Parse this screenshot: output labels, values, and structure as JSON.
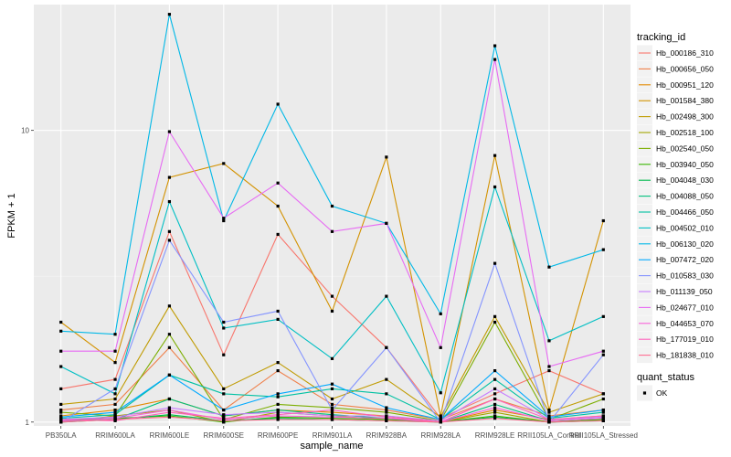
{
  "chart_data": {
    "type": "line",
    "xlabel": "sample_name",
    "ylabel": "FPKM + 1",
    "y_scale": "log10",
    "ylim": [
      0.97,
      27.0
    ],
    "y_ticks": [
      {
        "value": 1,
        "label": "1"
      },
      {
        "value": 10,
        "label": "10"
      }
    ],
    "grid": true,
    "legend_position": "right",
    "categories": [
      "PB350LA",
      "RRIM600LA",
      "RRIM600LE",
      "RRIM600SE",
      "RRIM600PE",
      "RRIM901LA",
      "RRIM928BA",
      "RRIM928LA",
      "RRIM928LE",
      "RRII105LA_Control",
      "RRII105LA_Stressed"
    ],
    "color_legend_title": "tracking_id",
    "shape_legend": {
      "title": "quant_status",
      "entries": [
        "OK"
      ]
    },
    "series": [
      {
        "name": "Hb_000186_310",
        "color": "#F8766D",
        "values": [
          1.3,
          1.4,
          4.5,
          1.7,
          4.4,
          2.7,
          1.8,
          1.03,
          1.25,
          1.5,
          1.25
        ]
      },
      {
        "name": "Hb_000656_050",
        "color": "#EF7F49",
        "values": [
          1.1,
          1.15,
          1.8,
          1.1,
          1.5,
          1.15,
          1.1,
          1.02,
          1.2,
          1.05,
          1.1
        ]
      },
      {
        "name": "Hb_000951_120",
        "color": "#E38900",
        "values": [
          1.05,
          1.1,
          1.2,
          1.05,
          1.1,
          1.08,
          1.05,
          1.0,
          1.1,
          1.02,
          1.05
        ]
      },
      {
        "name": "Hb_001584_380",
        "color": "#D39200",
        "values": [
          2.2,
          1.6,
          6.9,
          7.7,
          5.5,
          2.4,
          8.1,
          1.05,
          8.2,
          1.1,
          4.9
        ]
      },
      {
        "name": "Hb_002498_300",
        "color": "#C09B00",
        "values": [
          1.15,
          1.2,
          2.5,
          1.3,
          1.6,
          1.2,
          1.4,
          1.04,
          2.3,
          1.08,
          1.25
        ]
      },
      {
        "name": "Hb_002518_100",
        "color": "#A3A500",
        "values": [
          1.0,
          1.05,
          1.1,
          1.0,
          1.08,
          1.05,
          1.02,
          1.0,
          1.08,
          1.0,
          1.02
        ]
      },
      {
        "name": "Hb_002540_050",
        "color": "#7CAE00",
        "values": [
          1.08,
          1.05,
          2.0,
          1.02,
          1.15,
          1.12,
          1.08,
          1.01,
          2.2,
          1.02,
          1.2
        ]
      },
      {
        "name": "Hb_003940_050",
        "color": "#39B600",
        "values": [
          1.02,
          1.03,
          1.05,
          1.0,
          1.04,
          1.03,
          1.02,
          1.0,
          1.05,
          1.0,
          1.02
        ]
      },
      {
        "name": "Hb_004048_030",
        "color": "#00BB4E",
        "values": [
          1.0,
          1.02,
          1.06,
          1.01,
          1.03,
          1.02,
          1.01,
          1.0,
          1.04,
          1.0,
          1.01
        ]
      },
      {
        "name": "Hb_004088_050",
        "color": "#00BF7D",
        "values": [
          1.01,
          1.02,
          1.2,
          1.05,
          1.1,
          1.06,
          1.03,
          1.0,
          1.15,
          1.01,
          1.03
        ]
      },
      {
        "name": "Hb_004466_050",
        "color": "#00C1A3",
        "values": [
          1.03,
          1.06,
          1.45,
          1.25,
          1.22,
          1.3,
          1.25,
          1.02,
          1.4,
          1.03,
          1.08
        ]
      },
      {
        "name": "Hb_004502_010",
        "color": "#00BFC4",
        "values": [
          1.55,
          1.25,
          5.7,
          2.1,
          2.25,
          1.65,
          2.7,
          1.26,
          6.4,
          1.9,
          2.3
        ]
      },
      {
        "name": "Hb_006130_020",
        "color": "#00B8E7",
        "values": [
          2.05,
          2.0,
          25.0,
          4.9,
          12.3,
          5.5,
          4.8,
          2.35,
          19.5,
          3.4,
          3.9
        ]
      },
      {
        "name": "Hb_007472_020",
        "color": "#00A9FF",
        "values": [
          1.04,
          1.08,
          1.45,
          1.1,
          1.25,
          1.35,
          1.12,
          1.02,
          1.5,
          1.04,
          1.1
        ]
      },
      {
        "name": "Hb_010583_030",
        "color": "#8494FF",
        "values": [
          1.0,
          1.3,
          4.2,
          2.2,
          2.4,
          1.1,
          1.8,
          1.0,
          3.5,
          1.0,
          1.7
        ]
      },
      {
        "name": "Hb_011139_050",
        "color": "#C77CFF",
        "values": [
          1.02,
          1.04,
          1.12,
          1.06,
          1.08,
          1.05,
          1.05,
          1.01,
          1.3,
          1.02,
          1.04
        ]
      },
      {
        "name": "Hb_024677_010",
        "color": "#E76BF3",
        "values": [
          1.75,
          1.75,
          9.9,
          5.0,
          6.6,
          4.5,
          4.8,
          1.8,
          17.5,
          1.55,
          1.75
        ]
      },
      {
        "name": "Hb_044653_070",
        "color": "#FA62DB",
        "values": [
          1.01,
          1.03,
          1.1,
          1.02,
          1.05,
          1.04,
          1.03,
          1.0,
          1.12,
          1.01,
          1.03
        ]
      },
      {
        "name": "Hb_177019_010",
        "color": "#FF62BC",
        "values": [
          1.02,
          1.01,
          1.08,
          1.03,
          1.06,
          1.1,
          1.04,
          1.0,
          1.2,
          1.02,
          1.05
        ]
      },
      {
        "name": "Hb_181838_010",
        "color": "#FF6C91",
        "values": [
          1.0,
          1.02,
          1.04,
          1.01,
          1.02,
          1.02,
          1.01,
          1.0,
          1.03,
          1.0,
          1.01
        ]
      }
    ]
  }
}
